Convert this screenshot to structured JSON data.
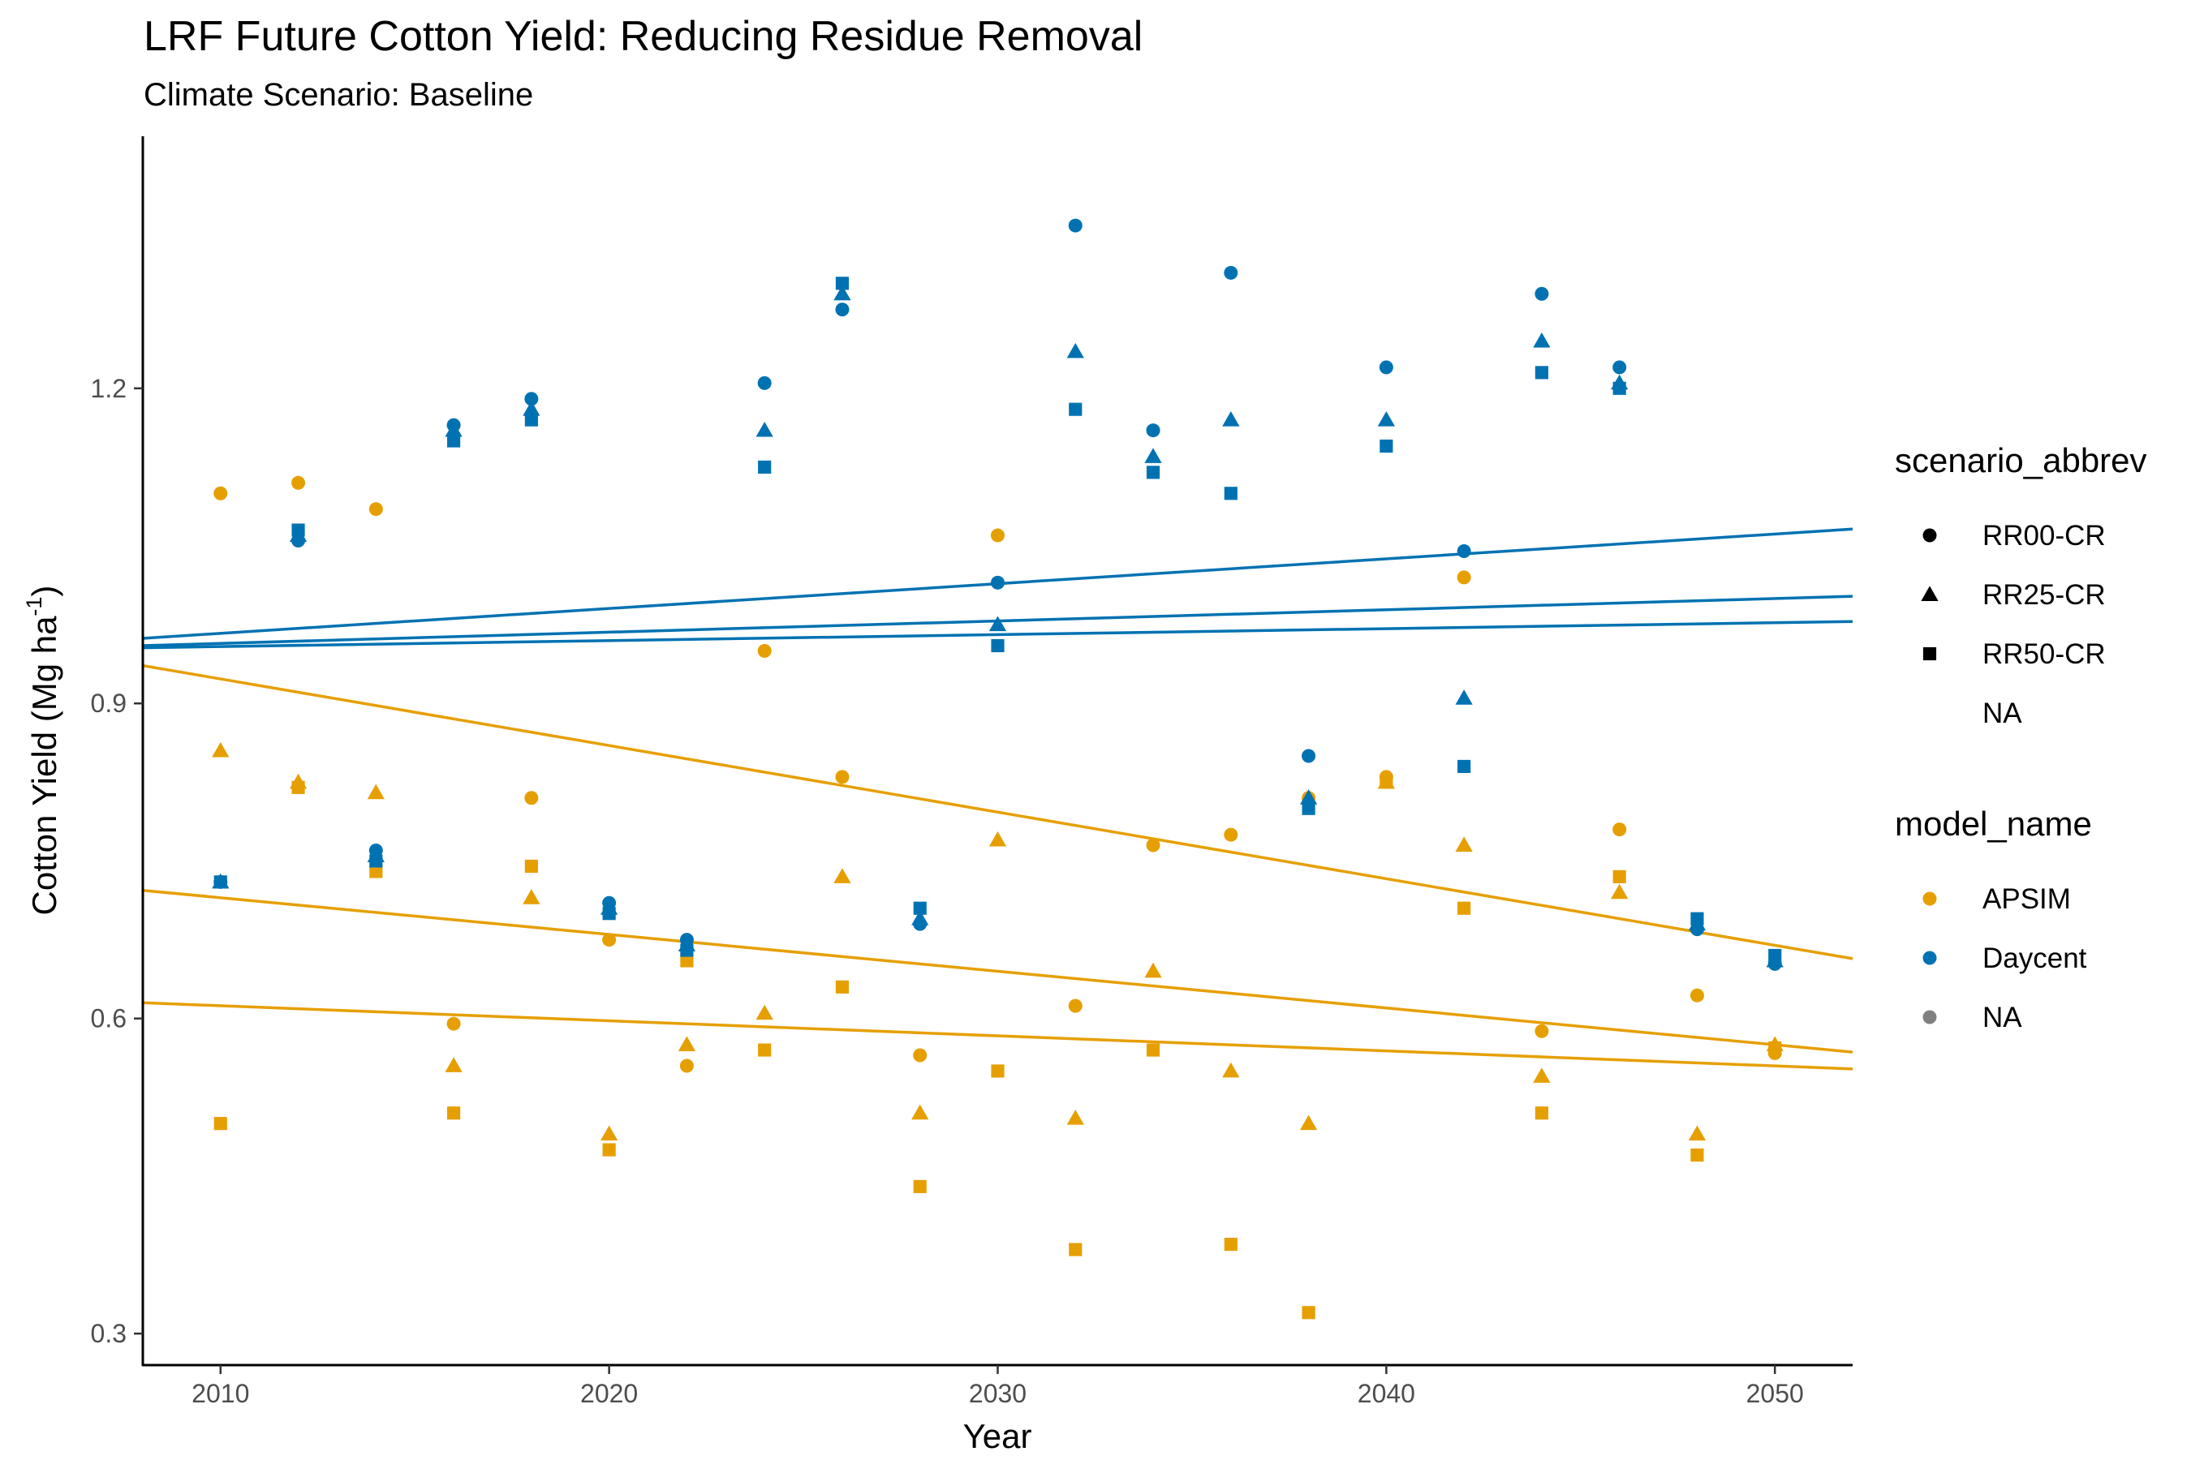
{
  "title": "LRF Future Cotton Yield: Reducing Residue Removal",
  "subtitle": "Climate Scenario: Baseline",
  "chart_data": {
    "type": "scatter",
    "title": "LRF Future Cotton Yield: Reducing Residue Removal",
    "subtitle": "Climate Scenario: Baseline",
    "xlabel": "Year",
    "ylabel": "Cotton Yield (Mg ha",
    "ylabel_superscript": "-1",
    "ylabel_suffix": ")",
    "xlim": [
      2008,
      2052
    ],
    "ylim": [
      0.27,
      1.44
    ],
    "x_ticks": [
      2010,
      2020,
      2030,
      2040,
      2050
    ],
    "y_ticks": [
      0.3,
      0.6,
      0.9,
      1.2
    ],
    "y_tick_labels": [
      "0.3",
      "0.6",
      "0.9",
      "1.2"
    ],
    "grid": false,
    "legend_position": "right",
    "colors": {
      "APSIM": "#E69F00",
      "Daycent": "#0072B2",
      "NA": "#808080"
    },
    "legends": [
      {
        "title": "scenario_abbrev",
        "items": [
          {
            "label": "RR00-CR",
            "shape": "circle"
          },
          {
            "label": "RR25-CR",
            "shape": "triangle"
          },
          {
            "label": "RR50-CR",
            "shape": "square"
          },
          {
            "label": "NA",
            "shape": "none"
          }
        ]
      },
      {
        "title": "model_name",
        "items": [
          {
            "label": "APSIM",
            "shape": "circle",
            "color": "#E69F00"
          },
          {
            "label": "Daycent",
            "shape": "circle",
            "color": "#0072B2"
          },
          {
            "label": "NA",
            "shape": "circle",
            "color": "#808080"
          }
        ]
      }
    ],
    "x": [
      2010,
      2012,
      2014,
      2016,
      2018,
      2020,
      2022,
      2024,
      2026,
      2028,
      2030,
      2032,
      2034,
      2036,
      2038,
      2040,
      2042,
      2044,
      2046,
      2048,
      2050
    ],
    "series": [
      {
        "model": "APSIM",
        "scenario": "RR00-CR",
        "shape": "circle",
        "values": [
          1.1,
          1.11,
          1.085,
          0.595,
          0.81,
          0.675,
          0.555,
          0.95,
          0.83,
          0.565,
          1.06,
          0.612,
          0.765,
          0.775,
          0.81,
          0.83,
          1.02,
          0.588,
          0.78,
          0.622,
          0.567
        ]
      },
      {
        "model": "APSIM",
        "scenario": "RR25-CR",
        "shape": "triangle",
        "values": [
          0.855,
          0.825,
          0.815,
          0.555,
          0.715,
          0.49,
          0.575,
          0.605,
          0.735,
          0.51,
          0.77,
          0.505,
          0.645,
          0.55,
          0.5,
          0.825,
          0.765,
          0.545,
          0.72,
          0.49,
          0.575
        ]
      },
      {
        "model": "APSIM",
        "scenario": "RR50-CR",
        "shape": "square",
        "values": [
          0.5,
          0.82,
          0.74,
          0.51,
          0.745,
          0.475,
          0.655,
          0.57,
          0.63,
          0.44,
          0.55,
          0.38,
          0.57,
          0.385,
          0.32,
          0.825,
          0.705,
          0.51,
          0.735,
          0.47,
          0.572
        ]
      },
      {
        "model": "Daycent",
        "scenario": "RR00-CR",
        "shape": "circle",
        "values": [
          0.73,
          1.055,
          0.76,
          1.165,
          1.19,
          0.71,
          0.675,
          1.205,
          1.275,
          0.69,
          1.015,
          1.355,
          1.16,
          1.31,
          0.85,
          1.22,
          1.045,
          1.29,
          1.22,
          0.685,
          0.652
        ]
      },
      {
        "model": "Daycent",
        "scenario": "RR25-CR",
        "shape": "triangle",
        "values": [
          0.73,
          1.06,
          0.755,
          1.16,
          1.18,
          0.705,
          0.67,
          1.16,
          1.29,
          0.695,
          0.975,
          1.235,
          1.135,
          1.17,
          0.81,
          1.17,
          0.905,
          1.245,
          1.205,
          0.69,
          0.655
        ]
      },
      {
        "model": "Daycent",
        "scenario": "RR50-CR",
        "shape": "square",
        "values": [
          0.73,
          1.065,
          0.75,
          1.15,
          1.17,
          0.7,
          0.665,
          1.125,
          1.3,
          0.705,
          0.955,
          1.18,
          1.12,
          1.1,
          0.8,
          1.145,
          0.84,
          1.215,
          1.2,
          0.695,
          0.66
        ]
      }
    ],
    "trend_lines": [
      {
        "model": "Daycent",
        "x": [
          2008,
          2052
        ],
        "y": [
          0.962,
          1.066
        ]
      },
      {
        "model": "Daycent",
        "x": [
          2008,
          2052
        ],
        "y": [
          0.955,
          1.002
        ]
      },
      {
        "model": "Daycent",
        "x": [
          2008,
          2052
        ],
        "y": [
          0.953,
          0.978
        ]
      },
      {
        "model": "APSIM",
        "x": [
          2008,
          2052
        ],
        "y": [
          0.936,
          0.657
        ]
      },
      {
        "model": "APSIM",
        "x": [
          2008,
          2052
        ],
        "y": [
          0.722,
          0.568
        ]
      },
      {
        "model": "APSIM",
        "x": [
          2008,
          2052
        ],
        "y": [
          0.615,
          0.552
        ]
      }
    ]
  }
}
